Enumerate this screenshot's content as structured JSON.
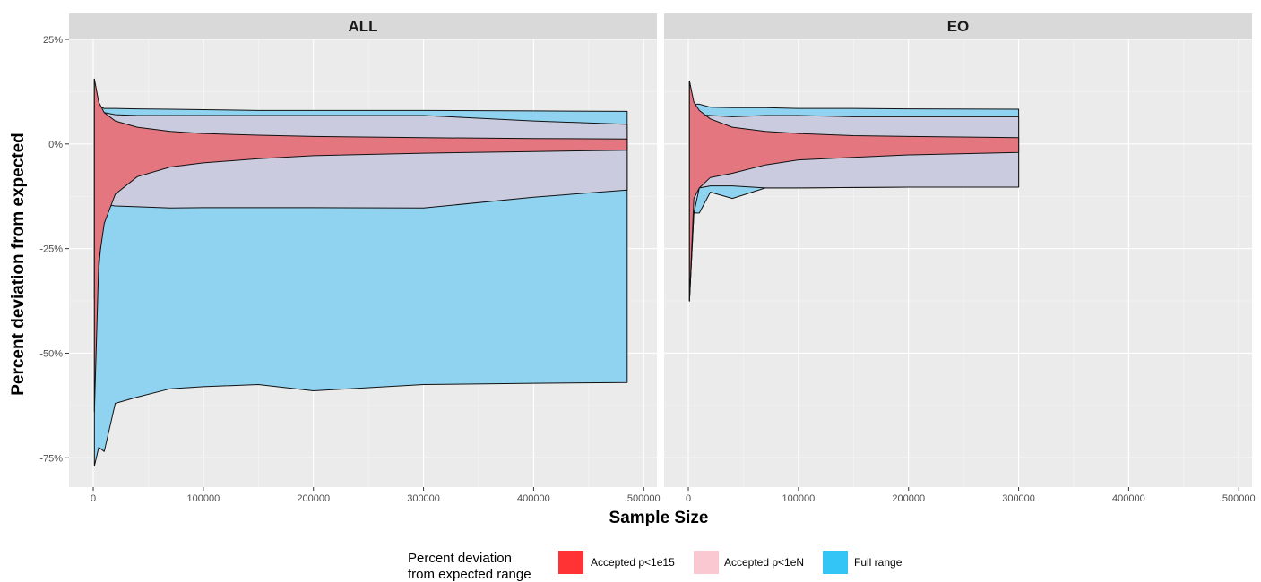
{
  "chart_data": {
    "type": "area",
    "xlabel": "Sample Size",
    "ylabel": "Percent deviation from expected",
    "ylim": [
      -82,
      25
    ],
    "y_ticks": [
      25,
      0,
      -25,
      -50,
      -75
    ],
    "y_tick_labels": [
      "25%",
      "0%",
      "-25%",
      "-50%",
      "-75%"
    ],
    "x_ticks": [
      0,
      100000,
      200000,
      300000,
      400000,
      500000
    ],
    "x_tick_labels": [
      "0",
      "100000",
      "200000",
      "300000",
      "400000",
      "500000"
    ],
    "grid": true,
    "legend_position": "bottom",
    "legend": {
      "title_line1": "Percent deviation",
      "title_line2": "from expected range",
      "items": [
        {
          "label": "Accepted p<1e15",
          "color": "#ff3333"
        },
        {
          "label": "Accepted p<1eN",
          "color": "#f9c8d0"
        },
        {
          "label": "Full range",
          "color": "#33c5f5"
        }
      ]
    },
    "panels": [
      {
        "name": "ALL",
        "xlim": [
          -22000,
          512000
        ],
        "series": [
          {
            "name": "Full range",
            "color": "#8fd3f0",
            "upper": [
              [
                1000,
                15.5
              ],
              [
                5000,
                9
              ],
              [
                10000,
                8.5
              ],
              [
                20000,
                8.5
              ],
              [
                40000,
                8.4
              ],
              [
                70000,
                8.3
              ],
              [
                100000,
                8.2
              ],
              [
                150000,
                8
              ],
              [
                200000,
                8
              ],
              [
                300000,
                8
              ],
              [
                400000,
                7.9
              ],
              [
                485000,
                7.8
              ]
            ],
            "lower": [
              [
                1000,
                -77
              ],
              [
                5000,
                -72.5
              ],
              [
                10000,
                -73.5
              ],
              [
                20000,
                -62
              ],
              [
                40000,
                -60.5
              ],
              [
                70000,
                -58.5
              ],
              [
                100000,
                -58
              ],
              [
                150000,
                -57.5
              ],
              [
                200000,
                -59
              ],
              [
                300000,
                -57.5
              ],
              [
                400000,
                -57.2
              ],
              [
                485000,
                -57
              ]
            ]
          },
          {
            "name": "Accepted p<1eN",
            "color": "#cbcbe0",
            "upper": [
              [
                1000,
                15.5
              ],
              [
                5000,
                9
              ],
              [
                10000,
                7.5
              ],
              [
                20000,
                7
              ],
              [
                40000,
                6.8
              ],
              [
                70000,
                6.8
              ],
              [
                100000,
                6.8
              ],
              [
                150000,
                6.8
              ],
              [
                200000,
                6.8
              ],
              [
                300000,
                6.8
              ],
              [
                400000,
                5.5
              ],
              [
                485000,
                4.7
              ]
            ],
            "lower": [
              [
                1000,
                -37
              ],
              [
                5000,
                -30
              ],
              [
                10000,
                -14.5
              ],
              [
                20000,
                -14.8
              ],
              [
                40000,
                -15
              ],
              [
                70000,
                -15.3
              ],
              [
                100000,
                -15.2
              ],
              [
                150000,
                -15.2
              ],
              [
                200000,
                -15.2
              ],
              [
                300000,
                -15.3
              ],
              [
                400000,
                -12.7
              ],
              [
                485000,
                -11
              ]
            ]
          },
          {
            "name": "Accepted p<1e15",
            "color": "#e47680",
            "upper": [
              [
                1000,
                15.5
              ],
              [
                5000,
                10
              ],
              [
                10000,
                7.5
              ],
              [
                20000,
                5.5
              ],
              [
                40000,
                4
              ],
              [
                70000,
                3
              ],
              [
                100000,
                2.5
              ],
              [
                150000,
                2.1
              ],
              [
                200000,
                1.8
              ],
              [
                300000,
                1.5
              ],
              [
                400000,
                1.3
              ],
              [
                485000,
                1.2
              ]
            ],
            "lower": [
              [
                1000,
                -64
              ],
              [
                5000,
                -28
              ],
              [
                10000,
                -19
              ],
              [
                20000,
                -12
              ],
              [
                40000,
                -7.8
              ],
              [
                70000,
                -5.5
              ],
              [
                100000,
                -4.5
              ],
              [
                150000,
                -3.5
              ],
              [
                200000,
                -2.8
              ],
              [
                300000,
                -2.2
              ],
              [
                400000,
                -1.8
              ],
              [
                485000,
                -1.5
              ]
            ]
          }
        ]
      },
      {
        "name": "EO",
        "xlim": [
          -22000,
          512000
        ],
        "series": [
          {
            "name": "Full range",
            "color": "#8fd3f0",
            "upper": [
              [
                1000,
                15
              ],
              [
                5000,
                9.5
              ],
              [
                10000,
                9.5
              ],
              [
                20000,
                8.8
              ],
              [
                40000,
                8.7
              ],
              [
                70000,
                8.7
              ],
              [
                100000,
                8.5
              ],
              [
                150000,
                8.5
              ],
              [
                200000,
                8.4
              ],
              [
                300000,
                8.3
              ]
            ],
            "lower": [
              [
                1000,
                -37.5
              ],
              [
                5000,
                -16.5
              ],
              [
                10000,
                -16.5
              ],
              [
                20000,
                -11.5
              ],
              [
                40000,
                -13
              ],
              [
                70000,
                -10.5
              ],
              [
                100000,
                -10.5
              ],
              [
                150000,
                -10.4
              ],
              [
                200000,
                -10.3
              ],
              [
                300000,
                -10.3
              ]
            ]
          },
          {
            "name": "Accepted p<1eN",
            "color": "#cbcbe0",
            "upper": [
              [
                1000,
                15
              ],
              [
                5000,
                9.5
              ],
              [
                10000,
                7
              ],
              [
                20000,
                6.8
              ],
              [
                40000,
                6.5
              ],
              [
                70000,
                6.8
              ],
              [
                100000,
                6.8
              ],
              [
                150000,
                6.5
              ],
              [
                200000,
                6.5
              ],
              [
                300000,
                6.5
              ]
            ],
            "lower": [
              [
                1000,
                -37.5
              ],
              [
                5000,
                -16.5
              ],
              [
                10000,
                -10.5
              ],
              [
                20000,
                -10
              ],
              [
                40000,
                -10
              ],
              [
                70000,
                -10.5
              ],
              [
                100000,
                -10.5
              ],
              [
                150000,
                -10.4
              ],
              [
                200000,
                -10.3
              ],
              [
                300000,
                -10.3
              ]
            ]
          },
          {
            "name": "Accepted p<1e15",
            "color": "#e47680",
            "upper": [
              [
                1000,
                15
              ],
              [
                5000,
                10
              ],
              [
                10000,
                8
              ],
              [
                20000,
                6
              ],
              [
                40000,
                4
              ],
              [
                70000,
                3
              ],
              [
                100000,
                2.5
              ],
              [
                150000,
                2
              ],
              [
                200000,
                1.8
              ],
              [
                300000,
                1.5
              ]
            ],
            "lower": [
              [
                1000,
                -37.5
              ],
              [
                5000,
                -13
              ],
              [
                10000,
                -10.5
              ],
              [
                20000,
                -8
              ],
              [
                40000,
                -7
              ],
              [
                70000,
                -5
              ],
              [
                100000,
                -3.8
              ],
              [
                150000,
                -3.2
              ],
              [
                200000,
                -2.6
              ],
              [
                300000,
                -2
              ]
            ]
          }
        ]
      }
    ]
  }
}
